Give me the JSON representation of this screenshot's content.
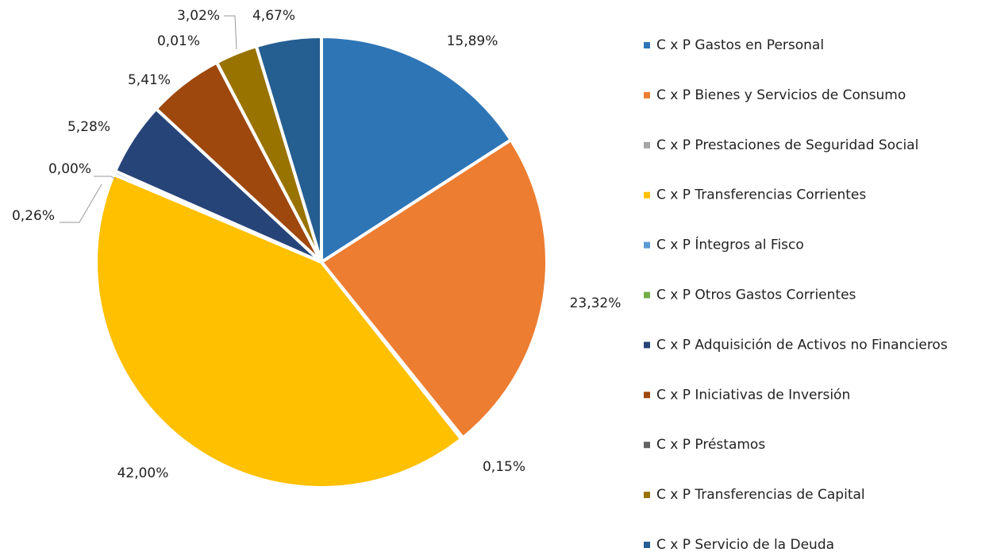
{
  "chart_data": {
    "type": "pie",
    "categories": [
      "C x P Gastos en Personal",
      "C x P Bienes y Servicios de Consumo",
      "C x P Prestaciones de Seguridad Social",
      "C x P Transferencias Corrientes",
      "C x P Íntegros al Fisco",
      "C x P Otros Gastos Corrientes",
      "C x P Adquisición de Activos no Financieros",
      "C x P Iniciativas de Inversión",
      "C x P Préstamos",
      "C x P Transferencias de Capital",
      "C x P Servicio de la Deuda"
    ],
    "values": [
      15.89,
      23.32,
      0.15,
      42.0,
      0.26,
      0.0,
      5.28,
      5.41,
      0.01,
      3.02,
      4.67
    ],
    "value_labels": [
      "15,89%",
      "23,32%",
      "0,15%",
      "42,00%",
      "0,26%",
      "0,00%",
      "5,28%",
      "5,41%",
      "0,01%",
      "3,02%",
      "4,67%"
    ],
    "colors": [
      "#2e75b6",
      "#ed7d31",
      "#a5a5a5",
      "#ffc000",
      "#5b9bd5",
      "#70ad47",
      "#264478",
      "#9e480e",
      "#636363",
      "#997300",
      "#255e91"
    ],
    "legend": "right"
  }
}
